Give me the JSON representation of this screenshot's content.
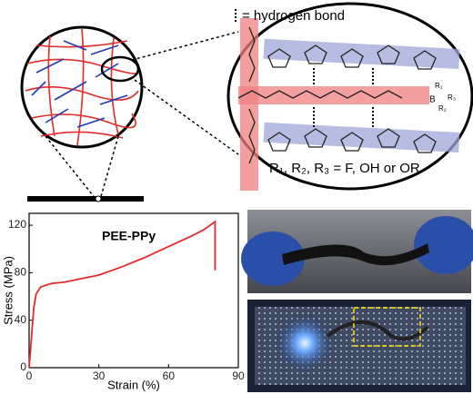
{
  "chart_data": {
    "type": "line",
    "annotation": "PEE-PPy",
    "x_label": "Strain (%)",
    "y_label": "Stress (MPa)",
    "x": [
      0,
      1,
      2,
      3,
      5,
      8,
      10,
      15,
      20,
      30,
      40,
      50,
      60,
      70,
      75,
      80,
      80
    ],
    "values": [
      0,
      25,
      50,
      62,
      68,
      70,
      71,
      72,
      74,
      78,
      85,
      93,
      102,
      111,
      116,
      123,
      82
    ],
    "color": "#e8282a",
    "xlim": [
      0,
      90
    ],
    "xticks": [
      0,
      30,
      60,
      90
    ],
    "ylim": [
      0,
      130
    ],
    "yticks": [
      0,
      40,
      80,
      120
    ]
  },
  "diagram": {
    "legend": "= hydrogen bond",
    "formula": "R₁, R₂, R₃ = F, OH or OR",
    "boron": "B",
    "r1": "R₁",
    "r2": "R₂",
    "r3": "R₃"
  }
}
